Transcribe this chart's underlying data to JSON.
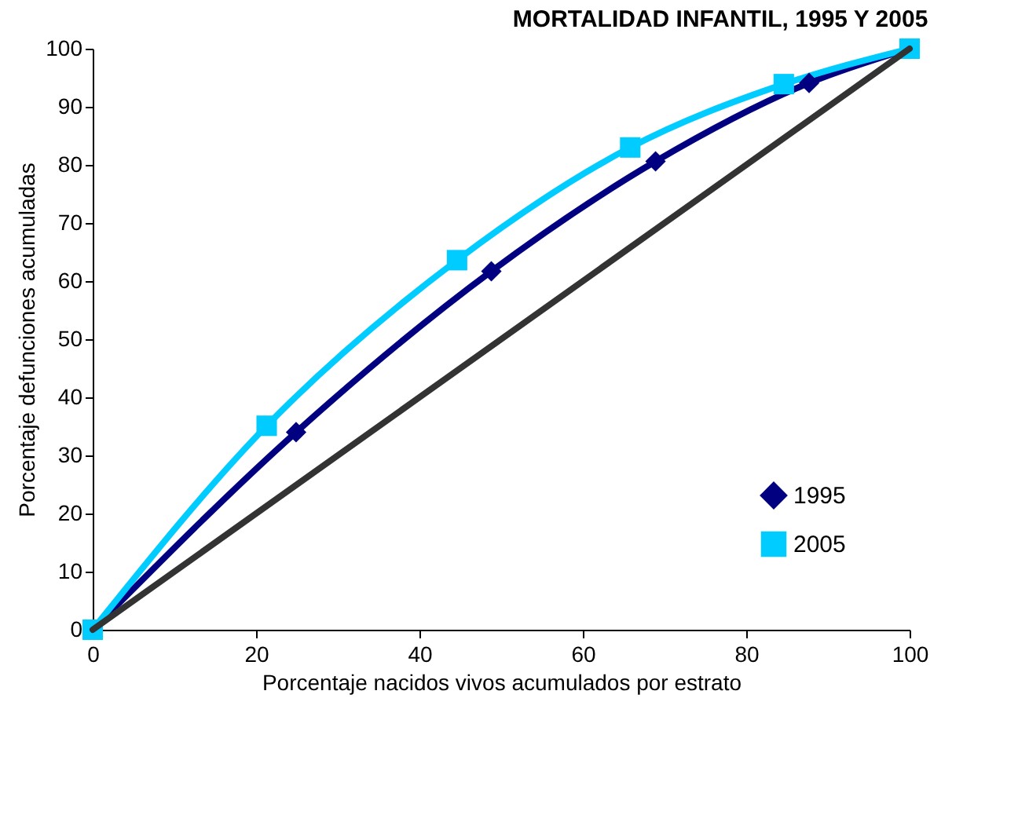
{
  "chart_data": {
    "type": "line",
    "title": "MORTALIDAD INFANTIL, 1995 Y 2005",
    "xlabel": "Porcentaje nacidos vivos acumulados por estrato",
    "ylabel": "Porcentaje defunciones acumuladas",
    "series": [
      {
        "name": "1995",
        "color": "#000080",
        "marker": "diamond",
        "x": [
          0,
          24.9,
          48.8,
          68.9,
          87.7,
          100
        ],
        "values": [
          0,
          34.0,
          61.7,
          80.6,
          94.1,
          100
        ]
      },
      {
        "name": "2005",
        "color": "#00ccff",
        "marker": "square",
        "x": [
          0,
          21.3,
          44.6,
          65.8,
          84.6,
          100
        ],
        "values": [
          0,
          35.1,
          63.6,
          83.0,
          93.9,
          100
        ]
      },
      {
        "color": "#333333",
        "marker": "none",
        "x": [
          0,
          100
        ],
        "values": [
          0,
          100
        ]
      }
    ],
    "xlim": [
      0,
      100
    ],
    "xticks": [
      0,
      20,
      40,
      60,
      80,
      100
    ],
    "ylim": [
      0,
      100
    ],
    "yticks": [
      0,
      10,
      20,
      30,
      40,
      50,
      60,
      70,
      80,
      90,
      100
    ],
    "grid": false,
    "legend": "bottom right",
    "line_style": "solid"
  }
}
